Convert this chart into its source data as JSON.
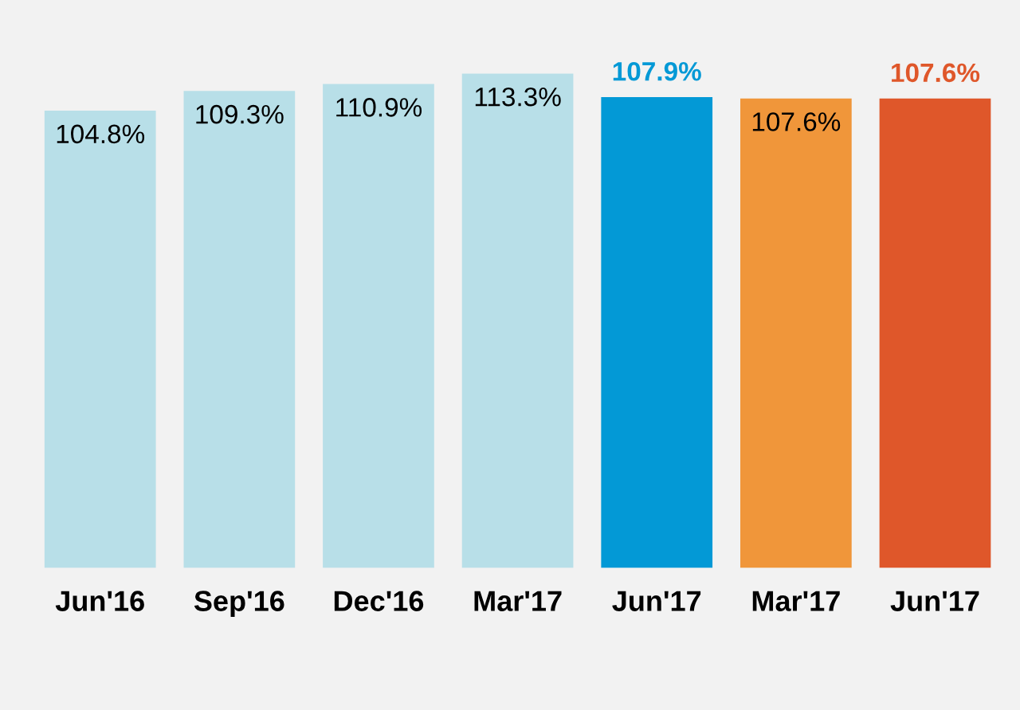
{
  "chart_data": {
    "type": "bar",
    "categories": [
      "Jun'16",
      "Sep'16",
      "Dec'16",
      "Mar'17",
      "Jun'17",
      "Mar'17",
      "Jun'17"
    ],
    "values": [
      104.8,
      109.3,
      110.9,
      113.3,
      107.9,
      107.6,
      107.6
    ],
    "colors": [
      "#b8dfe8",
      "#b8dfe8",
      "#b8dfe8",
      "#b8dfe8",
      "#0399d6",
      "#f0963a",
      "#df572a"
    ],
    "value_labels": [
      "104.8%",
      "109.3%",
      "110.9%",
      "113.3%",
      "107.9%",
      "107.6%",
      "107.6%"
    ],
    "tick_labels": "x",
    "grid": false,
    "legend": false
  }
}
